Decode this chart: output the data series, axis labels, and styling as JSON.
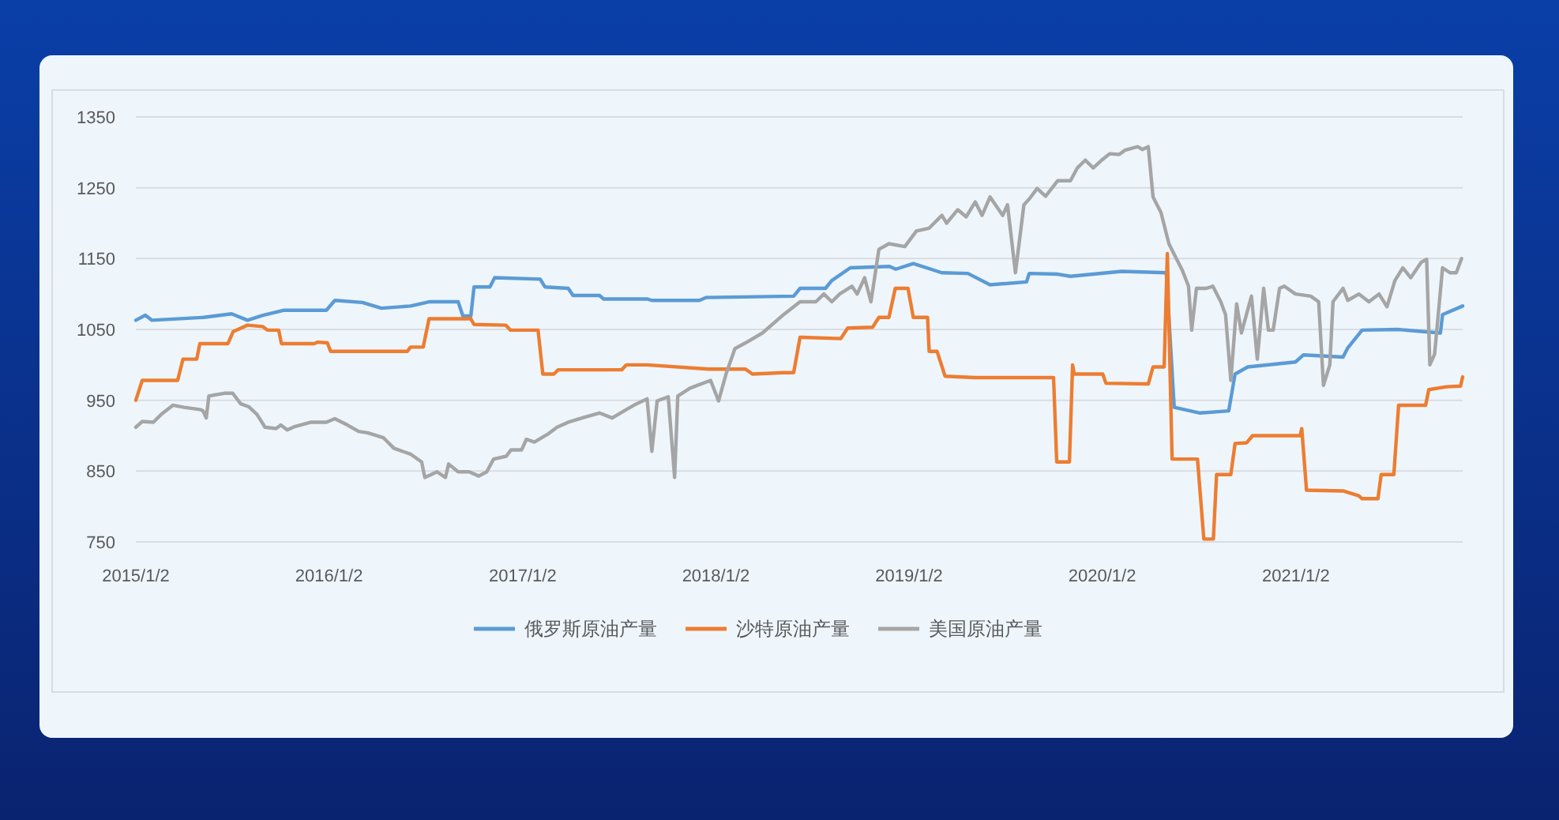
{
  "chart_data": {
    "type": "line",
    "xlim": [
      "2015-01-02",
      "2021-11-13"
    ],
    "ylim": [
      750,
      1350
    ],
    "yticks": [
      750,
      850,
      950,
      1050,
      1150,
      1250,
      1350
    ],
    "xticks": [
      {
        "value": "2015-01-02",
        "label": "2015/1/2"
      },
      {
        "value": "2016-01-02",
        "label": "2016/1/2"
      },
      {
        "value": "2017-01-02",
        "label": "2017/1/2"
      },
      {
        "value": "2018-01-02",
        "label": "2018/1/2"
      },
      {
        "value": "2019-01-02",
        "label": "2019/1/2"
      },
      {
        "value": "2020-01-02",
        "label": "2020/1/2"
      },
      {
        "value": "2021-01-02",
        "label": "2021/1/2"
      }
    ],
    "grid": "y",
    "legend": "bottom",
    "series": [
      {
        "name": "俄罗斯原油产量",
        "color": "#5b9bd5",
        "x": [
          "2015-01-02",
          "2015-01-20",
          "2015-02-01",
          "2015-05-10",
          "2015-07-02",
          "2015-08-01",
          "2015-08-30",
          "2015-10-08",
          "2015-12-28",
          "2016-01-13",
          "2016-03-05",
          "2016-04-10",
          "2016-06-04",
          "2016-07-09",
          "2016-09-02",
          "2016-09-11",
          "2016-09-26",
          "2016-10-02",
          "2016-11-01",
          "2016-11-10",
          "2017-02-04",
          "2017-02-13",
          "2017-03-29",
          "2017-04-07",
          "2017-05-27",
          "2017-06-04",
          "2017-08-25",
          "2017-09-03",
          "2017-12-02",
          "2017-12-14",
          "2018-05-29",
          "2018-06-10",
          "2018-07-28",
          "2018-08-09",
          "2018-09-13",
          "2018-11-26",
          "2018-12-08",
          "2019-01-10",
          "2019-03-05",
          "2019-04-23",
          "2019-06-04",
          "2019-08-12",
          "2019-08-17",
          "2019-10-10",
          "2019-11-03",
          "2020-02-08",
          "2020-05-02",
          "2020-05-17",
          "2020-07-05",
          "2020-08-28",
          "2020-09-09",
          "2020-10-03",
          "2021-01-01",
          "2021-01-16",
          "2021-04-01",
          "2021-04-10",
          "2021-05-07",
          "2021-07-13",
          "2021-10-02",
          "2021-10-06",
          "2021-11-13"
        ],
        "values": [
          1063,
          1070,
          1063,
          1067,
          1072,
          1063,
          1070,
          1077,
          1077,
          1091,
          1088,
          1080,
          1083,
          1089,
          1089,
          1069,
          1069,
          1110,
          1110,
          1123,
          1121,
          1110,
          1108,
          1098,
          1098,
          1093,
          1093,
          1091,
          1091,
          1095,
          1097,
          1108,
          1108,
          1119,
          1137,
          1139,
          1135,
          1143,
          1130,
          1129,
          1113,
          1117,
          1129,
          1128,
          1125,
          1132,
          1130,
          940,
          932,
          935,
          987,
          997,
          1004,
          1014,
          1011,
          1024,
          1049,
          1050,
          1045,
          1071,
          1083
        ]
      },
      {
        "name": "沙特原油产量",
        "color": "#ed7d31",
        "x": [
          "2015-01-02",
          "2015-01-14",
          "2015-03-22",
          "2015-04-01",
          "2015-04-27",
          "2015-05-03",
          "2015-06-25",
          "2015-07-05",
          "2015-08-01",
          "2015-08-30",
          "2015-09-08",
          "2015-09-29",
          "2015-10-04",
          "2015-12-05",
          "2015-12-11",
          "2015-12-30",
          "2016-01-05",
          "2016-05-29",
          "2016-06-04",
          "2016-06-28",
          "2016-07-09",
          "2016-09-26",
          "2016-10-02",
          "2016-12-01",
          "2016-12-10",
          "2017-01-31",
          "2017-02-09",
          "2017-03-02",
          "2017-03-10",
          "2017-07-08",
          "2017-07-17",
          "2017-08-25",
          "2017-12-20",
          "2018-02-27",
          "2018-03-12",
          "2018-05-10",
          "2018-05-29",
          "2018-06-10",
          "2018-08-26",
          "2018-09-08",
          "2018-10-25",
          "2018-11-06",
          "2018-11-25",
          "2018-12-07",
          "2018-12-31",
          "2019-01-10",
          "2019-02-06",
          "2019-02-09",
          "2019-02-24",
          "2019-03-11",
          "2019-05-07",
          "2019-10-02",
          "2019-10-08",
          "2019-11-01",
          "2019-11-07",
          "2019-11-10",
          "2020-01-03",
          "2020-01-09",
          "2020-03-29",
          "2020-04-07",
          "2020-04-28",
          "2020-05-04",
          "2020-05-13",
          "2020-06-30",
          "2020-07-12",
          "2020-07-30",
          "2020-08-05",
          "2020-09-01",
          "2020-09-09",
          "2020-10-01",
          "2020-10-12",
          "2021-01-10",
          "2021-01-13",
          "2021-01-22",
          "2021-04-01",
          "2021-05-01",
          "2021-05-07",
          "2021-06-06",
          "2021-06-12",
          "2021-07-06",
          "2021-07-15",
          "2021-09-04",
          "2021-09-10",
          "2021-10-13",
          "2021-11-09",
          "2021-11-13"
        ],
        "values": [
          950,
          978,
          978,
          1008,
          1008,
          1030,
          1030,
          1047,
          1056,
          1054,
          1049,
          1049,
          1030,
          1030,
          1032,
          1031,
          1019,
          1019,
          1025,
          1025,
          1065,
          1065,
          1057,
          1056,
          1049,
          1049,
          987,
          987,
          993,
          993,
          1000,
          1000,
          994,
          994,
          987,
          989,
          989,
          1039,
          1037,
          1052,
          1053,
          1067,
          1067,
          1108,
          1108,
          1067,
          1067,
          1019,
          1019,
          984,
          982,
          982,
          863,
          863,
          1000,
          987,
          987,
          974,
          973,
          997,
          997,
          1157,
          867,
          867,
          754,
          754,
          845,
          845,
          889,
          890,
          900,
          900,
          910,
          823,
          822,
          815,
          811,
          811,
          845,
          845,
          943,
          943,
          965,
          969,
          970,
          983
        ]
      },
      {
        "name": "美国原油产量",
        "color": "#a5a5a5",
        "x": [
          "2015-01-02",
          "2015-01-14",
          "2015-02-04",
          "2015-02-19",
          "2015-03-13",
          "2015-04-03",
          "2015-05-03",
          "2015-05-09",
          "2015-05-15",
          "2015-05-20",
          "2015-06-20",
          "2015-07-04",
          "2015-07-19",
          "2015-08-03",
          "2015-08-19",
          "2015-09-03",
          "2015-09-24",
          "2015-10-03",
          "2015-10-15",
          "2015-10-30",
          "2015-11-29",
          "2015-12-28",
          "2016-01-13",
          "2016-02-06",
          "2016-02-27",
          "2016-03-15",
          "2016-04-14",
          "2016-05-04",
          "2016-06-04",
          "2016-06-25",
          "2016-07-01",
          "2016-07-24",
          "2016-08-09",
          "2016-08-15",
          "2016-09-02",
          "2016-09-23",
          "2016-10-11",
          "2016-10-26",
          "2016-11-08",
          "2016-12-02",
          "2016-12-11",
          "2016-12-31",
          "2017-01-09",
          "2017-01-24",
          "2017-02-20",
          "2017-03-08",
          "2017-03-29",
          "2017-04-29",
          "2017-05-27",
          "2017-06-20",
          "2017-07-17",
          "2017-08-05",
          "2017-08-25",
          "2017-09-03",
          "2017-09-13",
          "2017-10-04",
          "2017-10-16",
          "2017-10-22",
          "2017-11-14",
          "2017-12-23",
          "2018-01-07",
          "2018-01-22",
          "2018-02-07",
          "2018-02-27",
          "2018-03-31",
          "2018-05-10",
          "2018-06-10",
          "2018-07-10",
          "2018-07-25",
          "2018-08-09",
          "2018-08-24",
          "2018-09-16",
          "2018-09-26",
          "2018-10-10",
          "2018-10-22",
          "2018-11-06",
          "2018-11-25",
          "2018-12-25",
          "2019-01-16",
          "2019-02-09",
          "2019-03-05",
          "2019-03-14",
          "2019-04-04",
          "2019-04-20",
          "2019-05-07",
          "2019-05-20",
          "2019-06-04",
          "2019-06-28",
          "2019-07-07",
          "2019-07-22",
          "2019-08-07",
          "2019-08-17",
          "2019-09-01",
          "2019-09-17",
          "2019-10-10",
          "2019-11-03",
          "2019-11-16",
          "2019-12-01",
          "2019-12-16",
          "2020-01-01",
          "2020-01-16",
          "2020-02-03",
          "2020-02-14",
          "2020-03-09",
          "2020-03-18",
          "2020-03-29",
          "2020-04-07",
          "2020-04-22",
          "2020-05-07",
          "2020-05-17",
          "2020-06-01",
          "2020-06-13",
          "2020-06-19",
          "2020-06-28",
          "2020-07-17",
          "2020-07-29",
          "2020-08-13",
          "2020-08-22",
          "2020-09-01",
          "2020-09-12",
          "2020-09-21",
          "2020-10-10",
          "2020-10-21",
          "2020-11-02",
          "2020-11-11",
          "2020-11-20",
          "2020-12-02",
          "2020-12-11",
          "2021-01-01",
          "2021-01-30",
          "2021-02-14",
          "2021-02-23",
          "2021-03-07",
          "2021-03-13",
          "2021-04-01",
          "2021-04-10",
          "2021-05-01",
          "2021-05-20",
          "2021-06-08",
          "2021-06-23",
          "2021-07-08",
          "2021-07-23",
          "2021-08-07",
          "2021-08-27",
          "2021-09-06",
          "2021-09-12",
          "2021-09-21",
          "2021-10-06",
          "2021-10-20",
          "2021-11-01",
          "2021-11-11"
        ],
        "values": [
          912,
          920,
          919,
          930,
          943,
          940,
          937,
          935,
          925,
          956,
          960,
          960,
          945,
          941,
          930,
          912,
          910,
          915,
          908,
          913,
          919,
          919,
          924,
          915,
          906,
          904,
          897,
          882,
          874,
          863,
          841,
          849,
          841,
          860,
          849,
          849,
          843,
          849,
          867,
          871,
          880,
          880,
          895,
          891,
          903,
          912,
          919,
          926,
          932,
          925,
          937,
          945,
          952,
          878,
          949,
          955,
          841,
          956,
          967,
          978,
          949,
          989,
          1023,
          1031,
          1045,
          1071,
          1089,
          1089,
          1100,
          1089,
          1100,
          1111,
          1100,
          1123,
          1089,
          1163,
          1171,
          1167,
          1189,
          1193,
          1211,
          1200,
          1219,
          1209,
          1230,
          1211,
          1237,
          1211,
          1226,
          1130,
          1226,
          1234,
          1249,
          1238,
          1260,
          1260,
          1278,
          1289,
          1278,
          1289,
          1298,
          1297,
          1303,
          1308,
          1304,
          1308,
          1237,
          1215,
          1171,
          1156,
          1134,
          1111,
          1049,
          1108,
          1108,
          1111,
          1089,
          1071,
          978,
          1086,
          1045,
          1097,
          1008,
          1108,
          1049,
          1049,
          1108,
          1111,
          1100,
          1097,
          1089,
          971,
          1000,
          1089,
          1108,
          1091,
          1100,
          1089,
          1100,
          1082,
          1119,
          1137,
          1123,
          1145,
          1149,
          1000,
          1015,
          1137,
          1130,
          1130,
          1150
        ]
      }
    ]
  }
}
